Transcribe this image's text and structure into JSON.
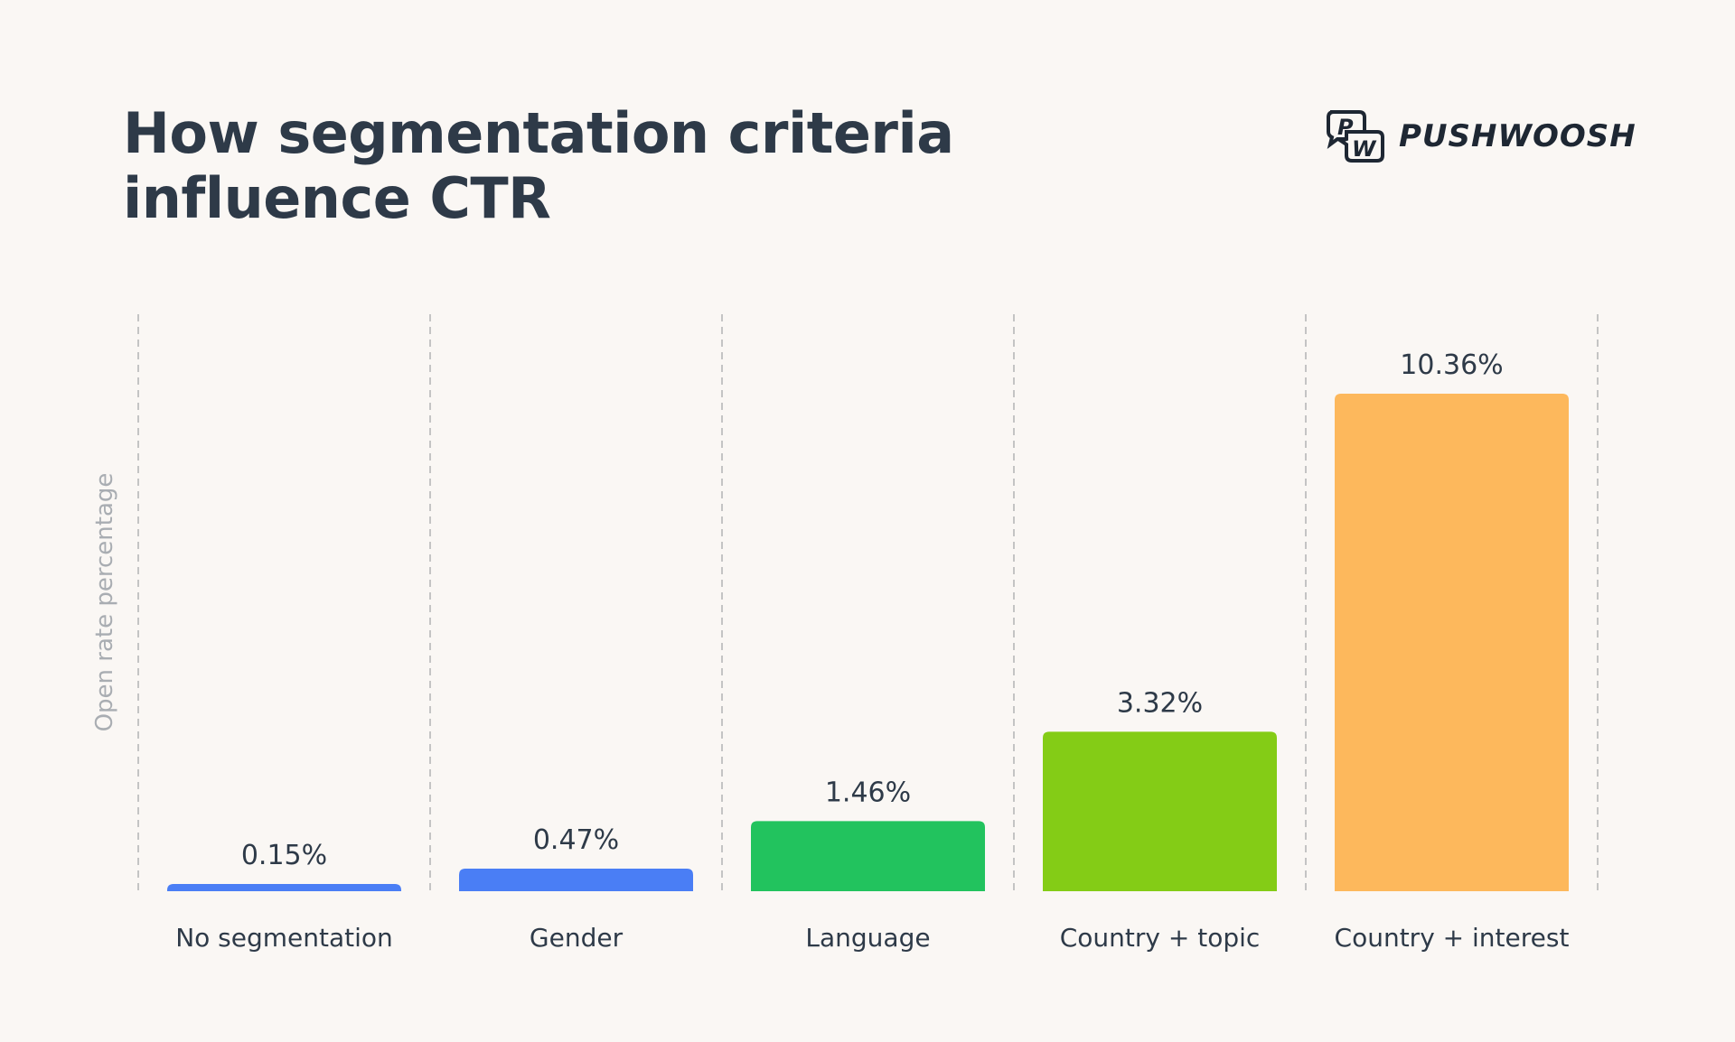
{
  "header": {
    "title": "How segmentation criteria influence CTR",
    "logo_text": "PUSHWOOSH"
  },
  "chart_data": {
    "type": "bar",
    "title": "How segmentation criteria influence CTR",
    "xlabel": "",
    "ylabel": "Open rate percentage",
    "categories": [
      "No segmentation",
      "Gender",
      "Language",
      "Country + topic",
      "Country + interest"
    ],
    "values": [
      0.15,
      0.47,
      1.46,
      3.32,
      10.36
    ],
    "data_labels": [
      "0.15%",
      "0.47%",
      "1.46%",
      "3.32%",
      "10.36%"
    ],
    "colors": [
      "#4a7ef5",
      "#4a7ef5",
      "#22c35e",
      "#84cc16",
      "#fdb85c"
    ],
    "ylim": [
      0,
      10.36
    ],
    "grid": "vertical dashed separators",
    "legend": "none"
  }
}
